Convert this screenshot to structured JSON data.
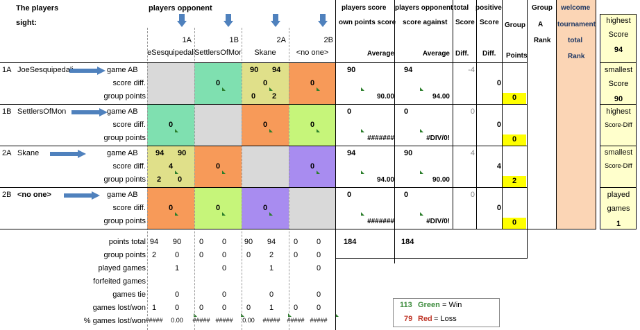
{
  "header": {
    "players_sight_1": "The players",
    "players_sight_2": "sight:",
    "players_opponent": "players opponent",
    "players_score_1": "players score",
    "players_score_2": "own points score",
    "opp_score_1": "players opponent",
    "opp_score_2": "score against",
    "total_score_1": "total",
    "total_score_2": "Score",
    "positive_score_1": "positive",
    "positive_score_2": "Score",
    "group_1": "Group",
    "group_points_label": "Points",
    "group_a_1": "Group",
    "group_a_2": "A",
    "group_a_3": "Rank",
    "welcome_1": "welcome",
    "welcome_2": "tournament",
    "welcome_3": "total",
    "welcome_4": "Rank",
    "average_1": "Average",
    "average_2": "Average",
    "diff_1": "Diff.",
    "diff_2": "Diff."
  },
  "columns": [
    {
      "code": "1A",
      "name": "eSesquipedali"
    },
    {
      "code": "1B",
      "name": "SettlersOfMon"
    },
    {
      "code": "2A",
      "name": "Skane"
    },
    {
      "code": "2B",
      "name": "<no one>"
    }
  ],
  "row_labels": {
    "game": "game AB",
    "diff": "score diff.",
    "points": "group points"
  },
  "rows": [
    {
      "code": "1A",
      "name": "JoeSesquipedali",
      "cells": [
        {
          "g1": "",
          "g2": "",
          "d": "",
          "p1": "",
          "p2": ""
        },
        {
          "g1": "",
          "g2": "",
          "d": "0",
          "p1": "",
          "p2": ""
        },
        {
          "g1": "90",
          "g2": "94",
          "d": "0",
          "p1": "0",
          "p2": "2"
        },
        {
          "g1": "",
          "g2": "",
          "d": "0",
          "p1": "",
          "p2": ""
        }
      ],
      "own_score": "90",
      "own_avg": "90.00",
      "opp_score": "94",
      "opp_avg": "94.00",
      "total_diff": "-4",
      "pos_diff": "0",
      "group_points": "0"
    },
    {
      "code": "1B",
      "name": "SettlersOfMon",
      "cells": [
        {
          "g1": "",
          "g2": "",
          "d": "0",
          "p1": "",
          "p2": ""
        },
        {
          "g1": "",
          "g2": "",
          "d": "",
          "p1": "",
          "p2": ""
        },
        {
          "g1": "",
          "g2": "",
          "d": "0",
          "p1": "",
          "p2": ""
        },
        {
          "g1": "",
          "g2": "",
          "d": "0",
          "p1": "",
          "p2": ""
        }
      ],
      "own_score": "0",
      "own_avg": "#######",
      "opp_score": "0",
      "opp_avg": "#DIV/0!",
      "total_diff": "0",
      "pos_diff": "0",
      "group_points": "0"
    },
    {
      "code": "2A",
      "name": "Skane",
      "cells": [
        {
          "g1": "94",
          "g2": "90",
          "d": "4",
          "p1": "2",
          "p2": "0"
        },
        {
          "g1": "",
          "g2": "",
          "d": "0",
          "p1": "",
          "p2": ""
        },
        {
          "g1": "",
          "g2": "",
          "d": "",
          "p1": "",
          "p2": ""
        },
        {
          "g1": "",
          "g2": "",
          "d": "0",
          "p1": "",
          "p2": ""
        }
      ],
      "own_score": "94",
      "own_avg": "94.00",
      "opp_score": "90",
      "opp_avg": "90.00",
      "total_diff": "4",
      "pos_diff": "4",
      "group_points": "2"
    },
    {
      "code": "2B",
      "name": "<no one>",
      "cells": [
        {
          "g1": "",
          "g2": "",
          "d": "0",
          "p1": "",
          "p2": ""
        },
        {
          "g1": "",
          "g2": "",
          "d": "0",
          "p1": "",
          "p2": ""
        },
        {
          "g1": "",
          "g2": "",
          "d": "0",
          "p1": "",
          "p2": ""
        },
        {
          "g1": "",
          "g2": "",
          "d": "",
          "p1": "",
          "p2": ""
        }
      ],
      "own_score": "0",
      "own_avg": "#######",
      "opp_score": "0",
      "opp_avg": "#DIV/0!",
      "total_diff": "0",
      "pos_diff": "0",
      "group_points": "0"
    }
  ],
  "cell_colors": [
    [
      "#d9d9d9",
      "#7fe0b0",
      "#e0e08a",
      "#f79a59"
    ],
    [
      "#7fe0b0",
      "#d9d9d9",
      "#f79a59",
      "#c6f57a"
    ],
    [
      "#e0e08a",
      "#f79a59",
      "#d9d9d9",
      "#a88cf0"
    ],
    [
      "#f79a59",
      "#c6f57a",
      "#a88cf0",
      "#d9d9d9"
    ]
  ],
  "summary": {
    "labels": [
      "points total",
      "group points",
      "played games",
      "forfeited games",
      "games tie",
      "games lost/won",
      "% games lost/won"
    ],
    "rows": [
      [
        "94",
        "90",
        "0",
        "0",
        "90",
        "94",
        "0",
        "0"
      ],
      [
        "2",
        "0",
        "0",
        "0",
        "0",
        "2",
        "0",
        "0"
      ],
      [
        "",
        "1",
        "",
        "0",
        "",
        "1",
        "",
        "0"
      ],
      [
        "",
        "",
        "",
        "",
        "",
        "",
        "",
        ""
      ],
      [
        "",
        "0",
        "",
        "0",
        "",
        "0",
        "",
        "0"
      ],
      [
        "1",
        "0",
        "0",
        "0",
        "0",
        "1",
        "0",
        "0"
      ],
      [
        "#####",
        "0.00",
        "#####",
        "#####",
        "0.00",
        "#####",
        "#####",
        "#####"
      ]
    ],
    "own_total": "184",
    "opp_total": "184"
  },
  "side_panel": [
    {
      "l1": "highest",
      "l2": "Score",
      "v": "94"
    },
    {
      "l1": "smallest",
      "l2": "Score",
      "v": "90"
    },
    {
      "l1": "highest",
      "l2": "Score-Diff",
      "v": ""
    },
    {
      "l1": "smallest",
      "l2": "Score-Diff",
      "v": ""
    },
    {
      "l1": "played",
      "l2": "games",
      "v": "1"
    }
  ],
  "legend": {
    "win_num": "113",
    "win_word": "Green",
    "win_text": "= Win",
    "loss_num": "79",
    "loss_word": "Red",
    "loss_text": "= Loss"
  },
  "colors": {
    "yellow": "#ffff00",
    "peach": "#fbd5b5",
    "panel": "#ffffcc",
    "arrow": "#4f81bd",
    "green_text": "#3a8a3a",
    "red_text": "#c0392b",
    "navy": "#1f3864"
  }
}
